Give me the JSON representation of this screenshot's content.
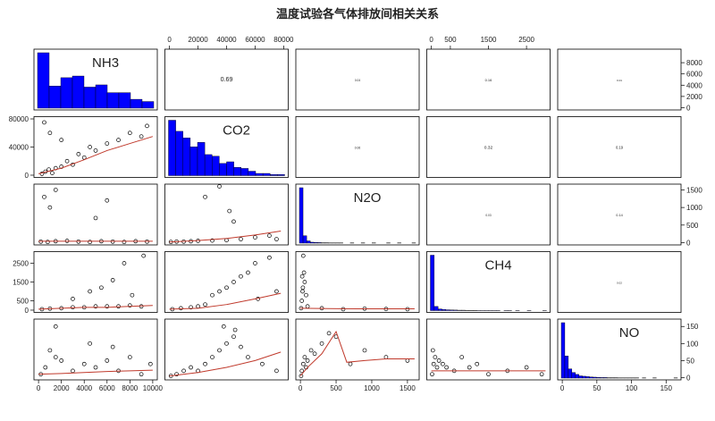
{
  "chart_data": {
    "type": "pairs",
    "title": "温度试验各气体排放间相关关系",
    "hist_color": "#0000ff",
    "point_color": "#000000",
    "smooth_color": "#c0392b",
    "variables": [
      {
        "name": "NH3",
        "lim": [
          0,
          10000
        ],
        "xticks": [
          0,
          2000,
          4000,
          6000,
          8000,
          10000
        ],
        "yticks": [
          0,
          2000,
          4000,
          6000,
          8000
        ],
        "bins": [
          0,
          1000,
          2000,
          3000,
          4000,
          5000,
          6000,
          7000,
          8000,
          9000,
          10000
        ],
        "counts": [
          100,
          40,
          55,
          58,
          38,
          42,
          28,
          28,
          16,
          12
        ]
      },
      {
        "name": "CO2",
        "lim": [
          0,
          80000
        ],
        "xticks": [
          0,
          20000,
          40000,
          60000,
          80000
        ],
        "yticks": [
          0,
          40000,
          80000
        ],
        "bins": [
          0,
          5000,
          10000,
          15000,
          20000,
          25000,
          30000,
          35000,
          40000,
          45000,
          50000,
          55000,
          60000,
          65000,
          70000,
          75000,
          80000
        ],
        "counts": [
          100,
          80,
          68,
          52,
          60,
          38,
          35,
          22,
          25,
          15,
          13,
          8,
          4,
          4,
          2,
          2
        ]
      },
      {
        "name": "N2O",
        "lim": [
          0,
          1600
        ],
        "xticks": [
          0,
          500,
          1000,
          1500
        ],
        "yticks": [
          0,
          500,
          1000,
          1500
        ],
        "bins": [
          0,
          50,
          100,
          150,
          200,
          250,
          300,
          350,
          400,
          450,
          500,
          550,
          600,
          650,
          700,
          750,
          800,
          850,
          900,
          950,
          1000,
          1050,
          1100,
          1150,
          1200,
          1250,
          1300,
          1350,
          1400,
          1450,
          1500,
          1550,
          1600
        ],
        "counts": [
          300,
          40,
          12,
          5,
          4,
          3,
          2,
          2,
          1,
          1,
          1,
          1,
          0,
          0,
          1,
          0,
          0,
          1,
          0,
          0,
          1,
          0,
          0,
          0,
          1,
          0,
          0,
          1,
          0,
          0,
          0,
          1
        ]
      },
      {
        "name": "CH4",
        "lim": [
          0,
          3000
        ],
        "xticks": [
          0,
          500,
          1500,
          2500
        ],
        "yticks": [
          0,
          500,
          1500,
          2500
        ],
        "bins": [
          0,
          100,
          200,
          300,
          400,
          500,
          600,
          700,
          800,
          900,
          1000,
          1100,
          1200,
          1300,
          1400,
          1500,
          1600,
          1700,
          1800,
          1900,
          2000,
          2100,
          2200,
          2300,
          2400,
          2500,
          2600,
          2700,
          2800,
          2900,
          3000
        ],
        "counts": [
          400,
          30,
          12,
          8,
          6,
          5,
          4,
          3,
          3,
          2,
          2,
          2,
          1,
          1,
          1,
          1,
          1,
          1,
          0,
          1,
          1,
          0,
          1,
          0,
          0,
          1,
          0,
          0,
          0,
          1
        ]
      },
      {
        "name": "NO",
        "lim": [
          0,
          165
        ],
        "xticks": [
          0,
          50,
          100,
          150
        ],
        "yticks": [
          0,
          50,
          100,
          150
        ],
        "bins": [
          0,
          5,
          10,
          15,
          20,
          25,
          30,
          35,
          40,
          45,
          50,
          55,
          60,
          65,
          70,
          75,
          80,
          85,
          90,
          95,
          100,
          105,
          110,
          115,
          120,
          125,
          130,
          135,
          140,
          145,
          150,
          155,
          160,
          165
        ],
        "counts": [
          300,
          120,
          50,
          30,
          20,
          12,
          10,
          8,
          6,
          5,
          4,
          3,
          3,
          2,
          2,
          2,
          1,
          1,
          1,
          1,
          1,
          1,
          0,
          1,
          0,
          0,
          1,
          0,
          0,
          0,
          0,
          0,
          1
        ]
      }
    ],
    "correlations": [
      [
        null,
        0.69,
        0.04,
        0.16,
        0.01
      ],
      [
        null,
        null,
        0.06,
        0.32,
        0.19
      ],
      [
        null,
        null,
        null,
        0.03,
        0.14
      ],
      [
        null,
        null,
        null,
        null,
        0.02
      ],
      [
        null,
        null,
        null,
        null,
        null
      ]
    ],
    "lower": [
      [
        null,
        null,
        null,
        null,
        null
      ],
      [
        {
          "x": [
            300,
            600,
            900,
            1200,
            1500,
            2000,
            2500,
            3000,
            3500,
            4000,
            4500,
            5000,
            6000,
            7000,
            8000,
            9000,
            9500,
            1000,
            2000,
            500
          ],
          "y": [
            2000,
            5000,
            8000,
            3000,
            10000,
            12000,
            20000,
            15000,
            30000,
            25000,
            40000,
            35000,
            45000,
            50000,
            60000,
            55000,
            70000,
            60000,
            50000,
            75000
          ],
          "smooth_x": [
            0,
            2000,
            4000,
            6000,
            8000,
            10000
          ],
          "smooth_y": [
            2000,
            10000,
            22000,
            35000,
            45000,
            55000
          ]
        },
        null,
        null,
        null,
        null
      ],
      [
        {
          "x": [
            200,
            800,
            1500,
            2500,
            3500,
            4500,
            5500,
            6500,
            7500,
            8500,
            9500,
            500,
            1000,
            1500,
            5000,
            6000
          ],
          "y": [
            30,
            20,
            40,
            50,
            30,
            20,
            40,
            30,
            20,
            40,
            30,
            1300,
            1000,
            1500,
            700,
            1200
          ],
          "smooth_x": [
            0,
            2000,
            4000,
            6000,
            8000,
            10000
          ],
          "smooth_y": [
            40,
            40,
            40,
            40,
            40,
            40
          ]
        },
        {
          "x": [
            1000,
            5000,
            10000,
            15000,
            20000,
            30000,
            40000,
            50000,
            60000,
            70000,
            75000,
            35000,
            42000,
            25000,
            45000
          ],
          "y": [
            20,
            30,
            30,
            40,
            50,
            60,
            70,
            100,
            150,
            200,
            100,
            1600,
            900,
            1300,
            600
          ],
          "smooth_x": [
            0,
            20000,
            40000,
            60000,
            78000
          ],
          "smooth_y": [
            20,
            60,
            120,
            220,
            330
          ]
        },
        null,
        null,
        null
      ],
      [
        {
          "x": [
            300,
            1000,
            2000,
            3000,
            4000,
            5000,
            6000,
            7000,
            8000,
            9000,
            5500,
            6500,
            7500,
            9200,
            4500,
            3000,
            8200
          ],
          "y": [
            50,
            80,
            100,
            150,
            150,
            200,
            200,
            200,
            250,
            200,
            1200,
            1600,
            2500,
            2900,
            1000,
            600,
            800
          ],
          "smooth_x": [
            0,
            2000,
            4000,
            6000,
            8000,
            10000
          ],
          "smooth_y": [
            50,
            100,
            150,
            150,
            200,
            250
          ]
        },
        {
          "x": [
            2000,
            8000,
            15000,
            20000,
            25000,
            30000,
            35000,
            40000,
            45000,
            50000,
            55000,
            60000,
            70000,
            75000,
            62000
          ],
          "y": [
            50,
            100,
            150,
            200,
            300,
            800,
            1000,
            1200,
            1500,
            1800,
            2000,
            2500,
            2800,
            1000,
            600
          ],
          "smooth_x": [
            0,
            20000,
            40000,
            60000,
            78000
          ],
          "smooth_y": [
            50,
            100,
            300,
            600,
            900
          ]
        },
        {
          "x": [
            10,
            20,
            30,
            50,
            40,
            60,
            80,
            100,
            300,
            600,
            900,
            1200,
            1500,
            25,
            35
          ],
          "y": [
            100,
            500,
            1000,
            2000,
            2900,
            1500,
            800,
            200,
            100,
            50,
            80,
            60,
            50,
            1800,
            1200
          ],
          "smooth_x": [
            0,
            400,
            800,
            1200,
            1600
          ],
          "smooth_y": [
            100,
            80,
            70,
            70,
            70
          ]
        },
        null,
        null
      ],
      [
        {
          "x": [
            200,
            600,
            1000,
            1500,
            2000,
            3000,
            4000,
            5000,
            6000,
            7000,
            8000,
            9000,
            9800,
            1500,
            4500,
            6500
          ],
          "y": [
            10,
            30,
            80,
            60,
            50,
            20,
            40,
            30,
            50,
            20,
            60,
            10,
            40,
            150,
            100,
            90
          ],
          "smooth_x": [
            0,
            2000,
            4000,
            6000,
            8000,
            10000
          ],
          "smooth_y": [
            10,
            12,
            15,
            18,
            20,
            22
          ]
        },
        {
          "x": [
            1000,
            5000,
            10000,
            15000,
            20000,
            25000,
            30000,
            35000,
            40000,
            45000,
            50000,
            55000,
            65000,
            75000,
            38000,
            46000
          ],
          "y": [
            5,
            10,
            20,
            30,
            20,
            40,
            60,
            80,
            100,
            120,
            90,
            60,
            40,
            20,
            150,
            140
          ],
          "smooth_x": [
            0,
            20000,
            40000,
            60000,
            78000
          ],
          "smooth_y": [
            5,
            15,
            30,
            50,
            75
          ]
        },
        {
          "x": [
            10,
            20,
            40,
            60,
            80,
            100,
            150,
            200,
            300,
            400,
            500,
            700,
            900,
            1200,
            1500
          ],
          "y": [
            5,
            20,
            40,
            60,
            30,
            50,
            80,
            70,
            100,
            130,
            120,
            40,
            80,
            60,
            50
          ],
          "smooth_x": [
            0,
            100,
            300,
            500,
            650,
            900,
            1200,
            1600
          ],
          "smooth_y": [
            5,
            30,
            70,
            135,
            45,
            50,
            55,
            55
          ]
        },
        {
          "x": [
            20,
            40,
            60,
            100,
            150,
            200,
            300,
            400,
            600,
            800,
            1000,
            1200,
            1500,
            2000,
            2500,
            2900
          ],
          "y": [
            10,
            80,
            40,
            60,
            30,
            50,
            40,
            30,
            20,
            60,
            30,
            40,
            10,
            20,
            30,
            10
          ],
          "smooth_x": [
            0,
            1000,
            2000,
            3000
          ],
          "smooth_y": [
            20,
            20,
            20,
            20
          ]
        },
        null
      ]
    ]
  }
}
